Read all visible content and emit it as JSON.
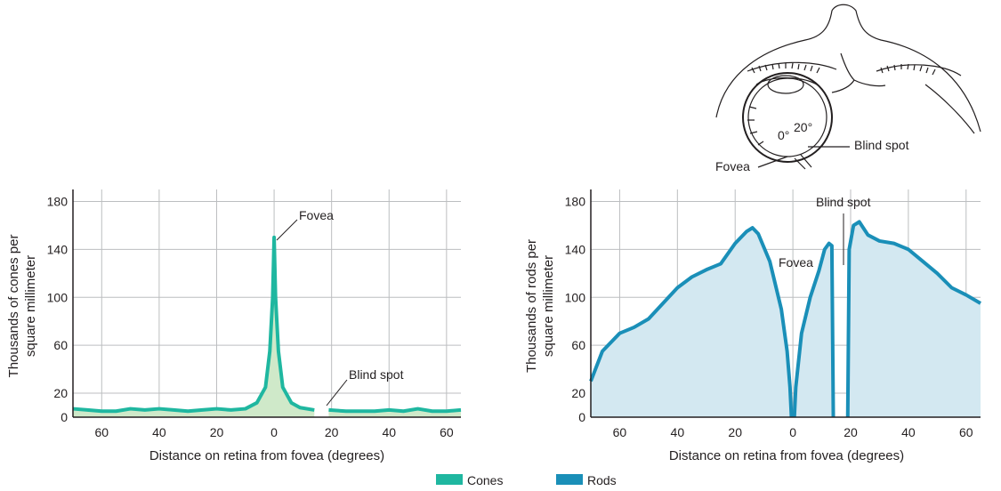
{
  "colors": {
    "cones_line": "#1fb7a0",
    "cones_fill": "#cfe9c9",
    "rods_line": "#1a8fb8",
    "rods_fill": "#d3e8f1",
    "grid": "#bcbec0",
    "axis": "#231f20"
  },
  "legend": [
    {
      "label": "Cones",
      "color": "#1fb7a0"
    },
    {
      "label": "Rods",
      "color": "#1a8fb8"
    }
  ],
  "diagram": {
    "icon": "eye-top-view-icon",
    "label_0": "0°",
    "label_20": "20°",
    "label_blind_spot": "Blind spot",
    "label_fovea": "Fovea"
  },
  "chart_data": [
    {
      "type": "area",
      "ylabel_line1": "Thousands of cones per",
      "ylabel_line2": "square millimeter",
      "xlabel": "Distance on retina from fovea (degrees)",
      "xlim": [
        -70,
        65
      ],
      "ylim": [
        0,
        190
      ],
      "x_ticks": [
        -60,
        -40,
        -20,
        0,
        20,
        40,
        60
      ],
      "x_tick_labels": [
        "60",
        "40",
        "20",
        "0",
        "20",
        "40",
        "60"
      ],
      "y_ticks": [
        0,
        20,
        60,
        100,
        140,
        180
      ],
      "y_tick_labels": [
        "0",
        "20",
        "60",
        "100",
        "140",
        "180"
      ],
      "grid": true,
      "annotations": [
        {
          "text": "Fovea",
          "x": 0,
          "y": 150
        },
        {
          "text": "Blind spot",
          "x": 17,
          "y": 8
        }
      ],
      "gap": [
        14,
        19
      ],
      "series": [
        {
          "name": "Cones",
          "segments": [
            [
              [
                -70,
                7
              ],
              [
                -65,
                6
              ],
              [
                -60,
                5
              ],
              [
                -55,
                5
              ],
              [
                -50,
                7
              ],
              [
                -45,
                6
              ],
              [
                -40,
                7
              ],
              [
                -35,
                6
              ],
              [
                -30,
                5
              ],
              [
                -25,
                6
              ],
              [
                -20,
                7
              ],
              [
                -15,
                6
              ],
              [
                -10,
                7
              ],
              [
                -6,
                12
              ],
              [
                -3,
                25
              ],
              [
                -1.5,
                55
              ],
              [
                -0.5,
                100
              ],
              [
                0,
                150
              ],
              [
                0.5,
                100
              ],
              [
                1.5,
                55
              ],
              [
                3,
                25
              ],
              [
                6,
                12
              ],
              [
                9,
                8
              ],
              [
                14,
                6
              ]
            ],
            [
              [
                19,
                6
              ],
              [
                25,
                5
              ],
              [
                30,
                5
              ],
              [
                35,
                5
              ],
              [
                40,
                6
              ],
              [
                45,
                5
              ],
              [
                50,
                7
              ],
              [
                55,
                5
              ],
              [
                60,
                5
              ],
              [
                65,
                6
              ]
            ]
          ]
        }
      ]
    },
    {
      "type": "area",
      "ylabel_line1": "Thousands of rods per",
      "ylabel_line2": "square millimeter",
      "xlabel": "Distance on retina from fovea (degrees)",
      "xlim": [
        -70,
        65
      ],
      "ylim": [
        0,
        190
      ],
      "x_ticks": [
        -60,
        -40,
        -20,
        0,
        20,
        40,
        60
      ],
      "x_tick_labels": [
        "60",
        "40",
        "20",
        "0",
        "20",
        "40",
        "60"
      ],
      "y_ticks": [
        0,
        20,
        60,
        100,
        140,
        180
      ],
      "y_tick_labels": [
        "0",
        "20",
        "60",
        "100",
        "140",
        "180"
      ],
      "grid": true,
      "annotations": [
        {
          "text": "Fovea",
          "x": 0,
          "y": 130
        },
        {
          "text": "Blind spot",
          "x": 17,
          "y": 180
        }
      ],
      "series": [
        {
          "name": "Rods",
          "segments": [
            [
              [
                -70,
                30
              ],
              [
                -66,
                55
              ],
              [
                -60,
                70
              ],
              [
                -55,
                75
              ],
              [
                -50,
                82
              ],
              [
                -45,
                95
              ],
              [
                -40,
                108
              ],
              [
                -35,
                117
              ],
              [
                -30,
                123
              ],
              [
                -25,
                128
              ],
              [
                -20,
                145
              ],
              [
                -16,
                155
              ],
              [
                -14,
                158
              ],
              [
                -12,
                153
              ],
              [
                -8,
                130
              ],
              [
                -4,
                90
              ],
              [
                -2,
                55
              ],
              [
                -1,
                25
              ],
              [
                -0.5,
                0
              ]
            ],
            [
              [
                0.5,
                0
              ],
              [
                1,
                25
              ],
              [
                3,
                70
              ],
              [
                6,
                100
              ],
              [
                9,
                122
              ],
              [
                11,
                140
              ],
              [
                12.5,
                145
              ],
              [
                13.5,
                143
              ],
              [
                14,
                0
              ]
            ],
            [
              [
                19,
                0
              ],
              [
                19.5,
                140
              ],
              [
                21,
                160
              ],
              [
                23,
                163
              ],
              [
                26,
                152
              ],
              [
                30,
                147
              ],
              [
                35,
                145
              ],
              [
                40,
                140
              ],
              [
                45,
                130
              ],
              [
                50,
                120
              ],
              [
                55,
                108
              ],
              [
                60,
                102
              ],
              [
                65,
                95
              ]
            ]
          ]
        }
      ]
    }
  ]
}
